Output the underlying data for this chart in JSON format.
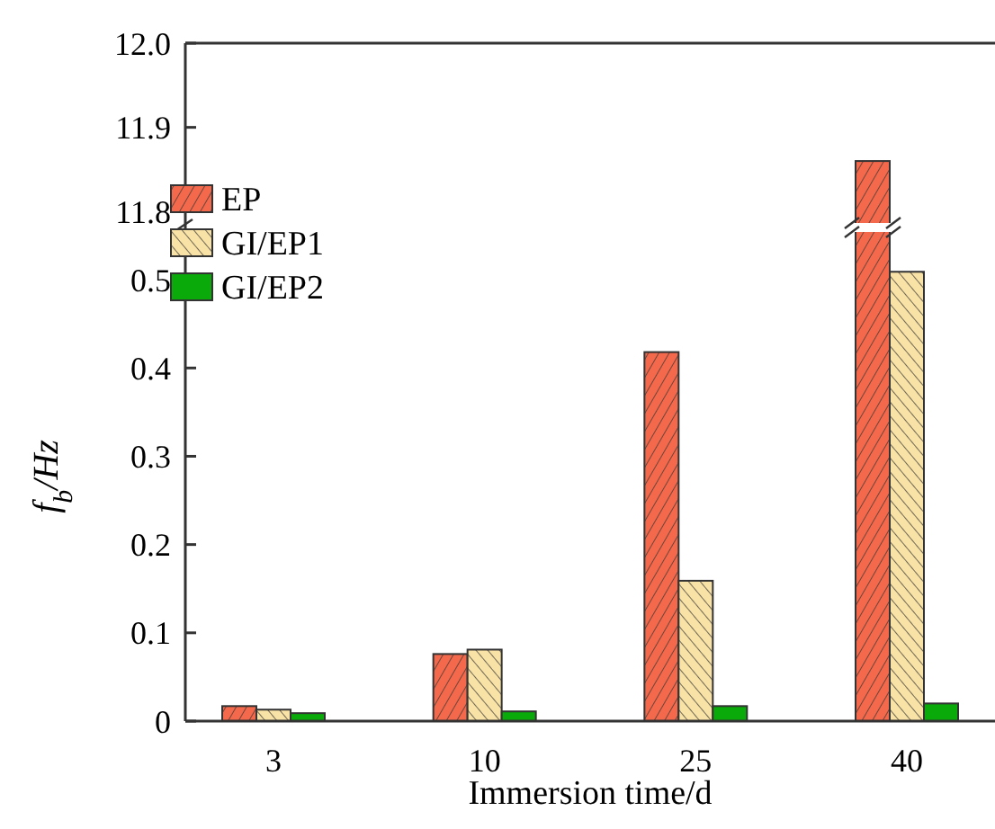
{
  "chart_data": [
    {
      "type": "bar",
      "categories": [
        "3",
        "10",
        "25",
        "40"
      ],
      "ylim": [
        11.78,
        12.0
      ],
      "yticks": [
        {
          "value": 11.8,
          "label": "11.8"
        },
        {
          "value": 11.9,
          "label": "11.9"
        },
        {
          "value": 12.0,
          "label": "12.0"
        }
      ],
      "tick_labels": "y",
      "series": [
        {
          "color": "#f4694b",
          "values": [
            null,
            null,
            null,
            11.86
          ]
        }
      ]
    },
    {
      "type": "bar",
      "categories": [
        "3",
        "10",
        "25",
        "40"
      ],
      "ylim": [
        0,
        0.55
      ],
      "yticks": [
        {
          "value": 0,
          "label": "0"
        },
        0.1,
        0.2,
        0.3,
        0.4,
        0.5
      ],
      "xlabel": "Immersion time/d",
      "ylabel": "f$_{b}$/Hz",
      "legend": "top left",
      "series": [
        {
          "name": "EP",
          "color": "#f4694b",
          "values": [
            0.017,
            0.076,
            0.418,
            null
          ]
        },
        {
          "name": "GI/EP1",
          "color": "#f9e2a6",
          "values": [
            0.013,
            0.081,
            0.159,
            0.509
          ]
        },
        {
          "name": "GI/EP2",
          "color": "#0aaa0a",
          "values": [
            0.009,
            0.011,
            0.017,
            0.02
          ]
        }
      ]
    }
  ]
}
